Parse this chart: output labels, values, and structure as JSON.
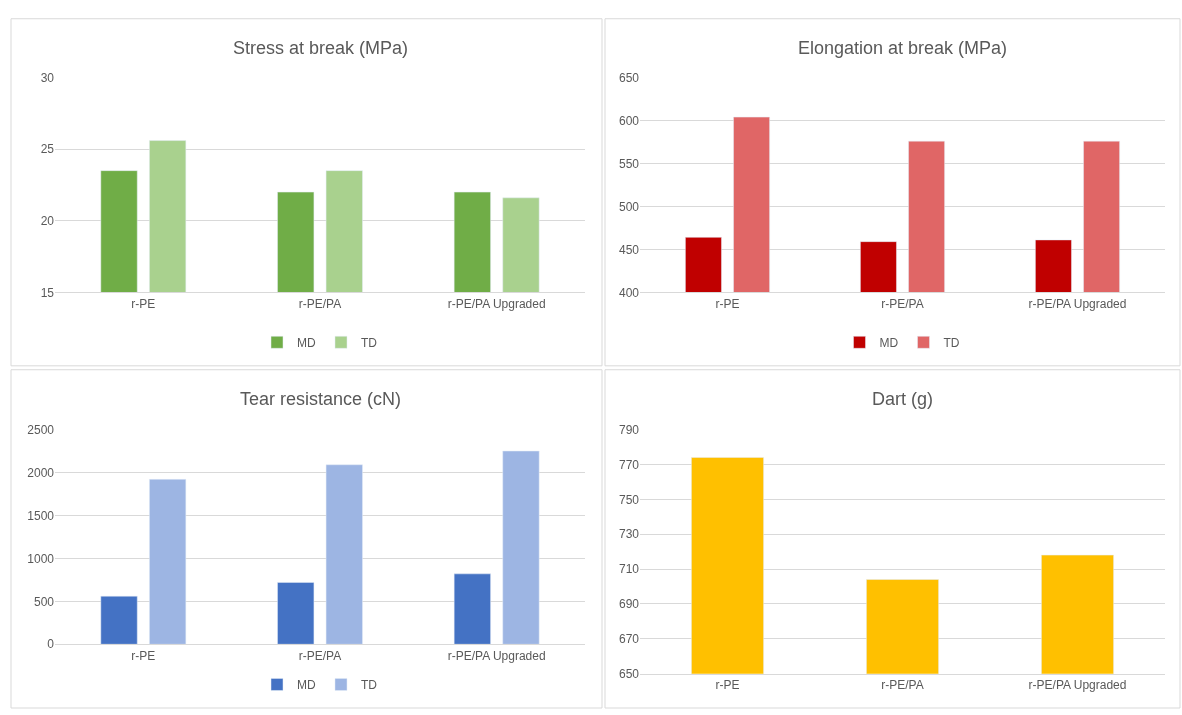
{
  "chart_data": [
    {
      "type": "bar",
      "title": "Stress at break (MPa)",
      "categories": [
        "r-PE",
        "r-PE/PA",
        "r-PE/PA Upgraded"
      ],
      "series": [
        {
          "name": "MD",
          "color": "#70ad47",
          "values": [
            23.5,
            22.0,
            22.0
          ]
        },
        {
          "name": "TD",
          "color": "#a9d18e",
          "values": [
            25.6,
            23.5,
            21.6
          ]
        }
      ],
      "ylim": [
        15,
        30
      ],
      "yticks": [
        15,
        20,
        25,
        30
      ],
      "grid": "y",
      "legend": "bottom"
    },
    {
      "type": "bar",
      "title": "Elongation at break (MPa)",
      "categories": [
        "r-PE",
        "r-PE/PA",
        "r-PE/PA Upgraded"
      ],
      "series": [
        {
          "name": "MD",
          "color": "#c00000",
          "values": [
            464,
            459,
            461
          ]
        },
        {
          "name": "TD",
          "color": "#e06666",
          "values": [
            604,
            576,
            576
          ]
        }
      ],
      "ylim": [
        400,
        650
      ],
      "yticks": [
        400,
        450,
        500,
        550,
        600,
        650
      ],
      "grid": "y",
      "legend": "bottom"
    },
    {
      "type": "bar",
      "title": "Tear resistance (cN)",
      "categories": [
        "r-PE",
        "r-PE/PA",
        "r-PE/PA Upgraded"
      ],
      "series": [
        {
          "name": "MD",
          "color": "#4472c4",
          "values": [
            560,
            720,
            820
          ]
        },
        {
          "name": "TD",
          "color": "#9db5e3",
          "values": [
            1920,
            2090,
            2250
          ]
        }
      ],
      "ylim": [
        0,
        2500
      ],
      "yticks": [
        0,
        500,
        1000,
        1500,
        2000,
        2500
      ],
      "grid": "y",
      "legend": "bottom"
    },
    {
      "type": "bar",
      "title": "Dart (g)",
      "categories": [
        "r-PE",
        "r-PE/PA",
        "r-PE/PA Upgraded"
      ],
      "series": [
        {
          "color": "#ffc000",
          "values": [
            774,
            704,
            718
          ]
        }
      ],
      "ylim": [
        650,
        790
      ],
      "yticks": [
        650,
        670,
        690,
        710,
        730,
        750,
        770,
        790
      ],
      "grid": "y"
    }
  ]
}
